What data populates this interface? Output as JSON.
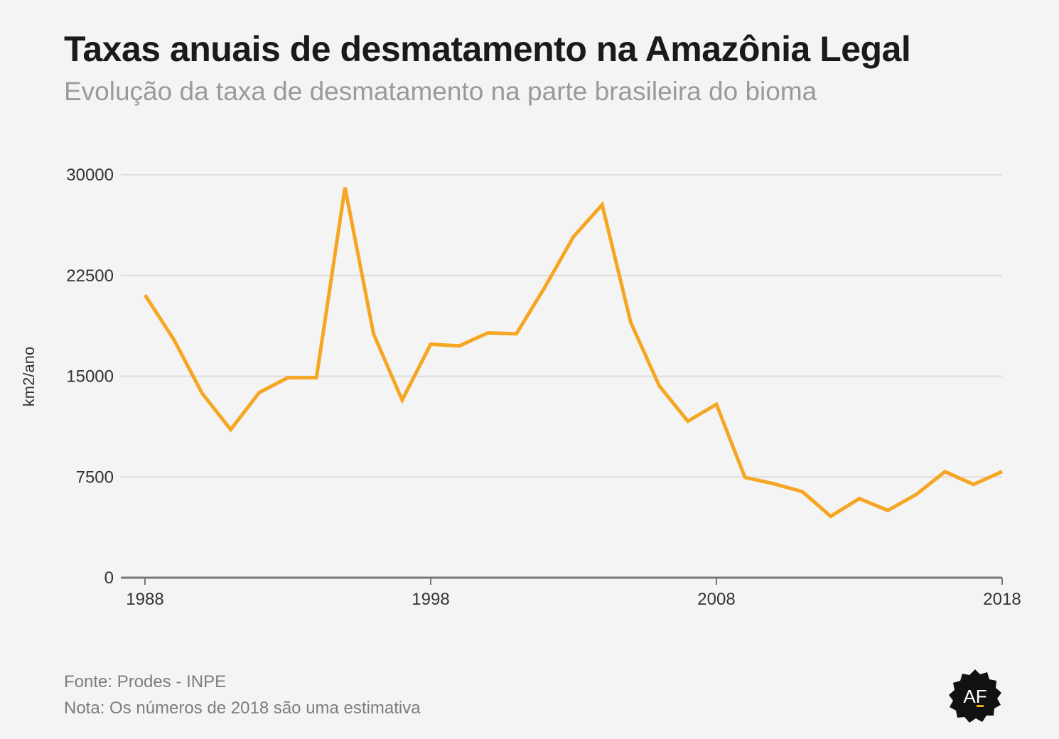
{
  "header": {
    "title": "Taxas anuais de desmatamento na Amazônia Legal",
    "subtitle": "Evolução da taxa de desmatamento na parte brasileira do bioma"
  },
  "footer": {
    "source": "Fonte: Prodes - INPE",
    "note": "Nota: Os números de 2018 são uma estimativa"
  },
  "logo": {
    "text": "AF",
    "icon": "af-badge-logo"
  },
  "colors": {
    "line": "#f5a623",
    "grid": "#dddddd",
    "axis": "#777777",
    "background": "#f4f4f4"
  },
  "chart_data": {
    "type": "line",
    "title": "Taxas anuais de desmatamento na Amazônia Legal",
    "subtitle": "Evolução da taxa de desmatamento na parte brasileira do bioma",
    "xlabel": "",
    "ylabel": "km2/ano",
    "xlim": [
      1988,
      2018
    ],
    "ylim": [
      0,
      30000
    ],
    "x_ticks": [
      1988,
      1998,
      2008,
      2018
    ],
    "y_ticks": [
      0,
      7500,
      15000,
      22500,
      30000
    ],
    "grid": true,
    "legend": "none",
    "x": [
      1988,
      1989,
      1990,
      1991,
      1992,
      1993,
      1994,
      1995,
      1996,
      1997,
      1998,
      1999,
      2000,
      2001,
      2002,
      2003,
      2004,
      2005,
      2006,
      2007,
      2008,
      2009,
      2010,
      2011,
      2012,
      2013,
      2014,
      2015,
      2016,
      2017,
      2018
    ],
    "series": [
      {
        "values": [
          21050,
          17770,
          13730,
          11030,
          13786,
          14896,
          14896,
          29059,
          18161,
          13227,
          17383,
          17259,
          18226,
          18165,
          21651,
          25396,
          27772,
          19014,
          14286,
          11651,
          12911,
          7464,
          7000,
          6418,
          4571,
          5891,
          5012,
          6207,
          7893,
          6947,
          7900
        ]
      }
    ],
    "annotations": [
      "Os números de 2018 são uma estimativa"
    ]
  }
}
